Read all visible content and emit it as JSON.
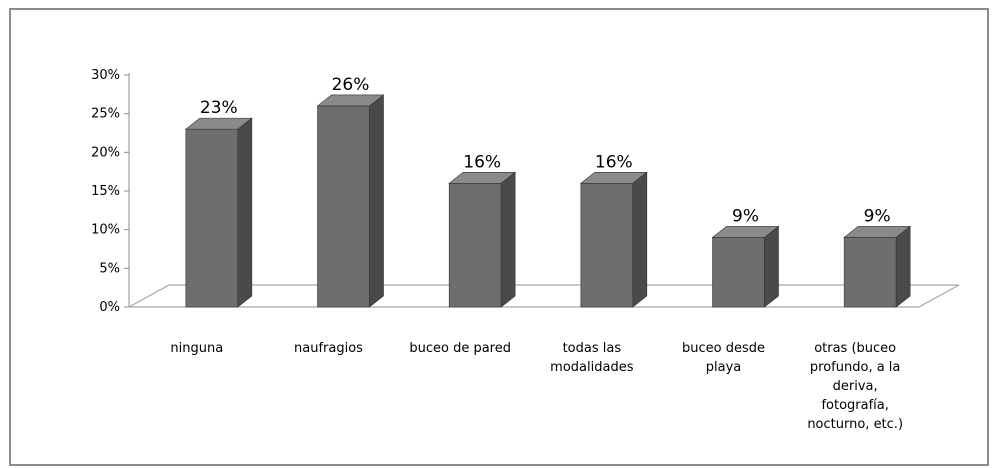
{
  "chart_data": {
    "type": "bar",
    "categories": [
      "ninguna",
      "naufragios",
      "buceo de pared",
      "todas las modalidades",
      "buceo desde playa",
      "otras (buceo profundo, a la deriva, fotografía, nocturno, etc.)"
    ],
    "category_label_lines": [
      [
        "ninguna"
      ],
      [
        "naufragios"
      ],
      [
        "buceo de pared"
      ],
      [
        "todas las",
        "modalidades"
      ],
      [
        "buceo desde",
        "playa"
      ],
      [
        "otras (buceo",
        "profundo, a la",
        "deriva,",
        "fotografía,",
        "nocturno, etc.)"
      ]
    ],
    "values": [
      0.23,
      0.26,
      0.16,
      0.16,
      0.09,
      0.09
    ],
    "data_labels": [
      "23%",
      "26%",
      "16%",
      "16%",
      "9%",
      "9%"
    ],
    "y_ticks": [
      "0%",
      "5%",
      "10%",
      "15%",
      "20%",
      "25%",
      "30%"
    ],
    "ylim": [
      0,
      0.3
    ],
    "title": "",
    "xlabel": "",
    "ylabel": "",
    "grid": false,
    "legend": "none",
    "colors": {
      "bar_front": "#6e6e6e",
      "bar_side": "#4a4a4a",
      "bar_top": "#8a8a8a",
      "floor_stroke": "#a6a6a6",
      "axis": "#8c8c8c"
    }
  }
}
